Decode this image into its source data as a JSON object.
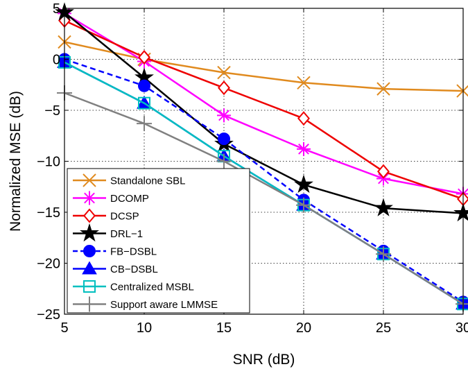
{
  "chart_data": {
    "type": "line",
    "xlabel": "SNR (dB)",
    "ylabel": "Normalized MSE (dB)",
    "xlim": [
      5,
      30
    ],
    "ylim": [
      -25,
      5
    ],
    "xticks": [
      5,
      10,
      15,
      20,
      25,
      30
    ],
    "yticks": [
      5,
      0,
      -5,
      -10,
      -15,
      -20,
      -25
    ],
    "x": [
      5,
      10,
      15,
      20,
      25,
      30
    ],
    "grid": true,
    "legend_position": "bottom-left",
    "series": [
      {
        "name": "Standalone SBL",
        "color": "#e08a1e",
        "marker": "x",
        "dash": "solid",
        "values": [
          1.7,
          0.0,
          -1.3,
          -2.3,
          -2.9,
          -3.1
        ]
      },
      {
        "name": "DCOMP",
        "color": "#ff00ff",
        "marker": "asterisk",
        "dash": "solid",
        "values": [
          4.5,
          -0.2,
          -5.5,
          -8.8,
          -11.7,
          -13.2
        ]
      },
      {
        "name": "DCSP",
        "color": "#ee0000",
        "marker": "diamond",
        "dash": "solid",
        "values": [
          3.8,
          0.2,
          -2.8,
          -5.8,
          -11.0,
          -13.7
        ]
      },
      {
        "name": "DRL−1",
        "color": "#000000",
        "marker": "star",
        "dash": "solid",
        "values": [
          4.6,
          -1.8,
          -8.3,
          -12.3,
          -14.6,
          -15.1
        ]
      },
      {
        "name": "FB−DSBL",
        "color": "#0000ff",
        "marker": "circle",
        "dash": "dashed",
        "values": [
          0.0,
          -2.6,
          -7.8,
          -13.8,
          -18.8,
          -23.8
        ]
      },
      {
        "name": "CB−DSBL",
        "color": "#0000ff",
        "marker": "triangle",
        "dash": "solid",
        "values": [
          -0.3,
          -4.3,
          -9.5,
          -14.3,
          -19.1,
          -24.0
        ]
      },
      {
        "name": "Centralized MSBL",
        "color": "#00bfbf",
        "marker": "square",
        "dash": "solid",
        "values": [
          -0.3,
          -4.3,
          -9.5,
          -14.3,
          -19.1,
          -24.0
        ]
      },
      {
        "name": "Support aware LMMSE",
        "color": "#808080",
        "marker": "plus",
        "dash": "solid",
        "values": [
          -3.3,
          -6.3,
          -10.0,
          -14.3,
          -19.1,
          -24.0
        ]
      }
    ]
  }
}
